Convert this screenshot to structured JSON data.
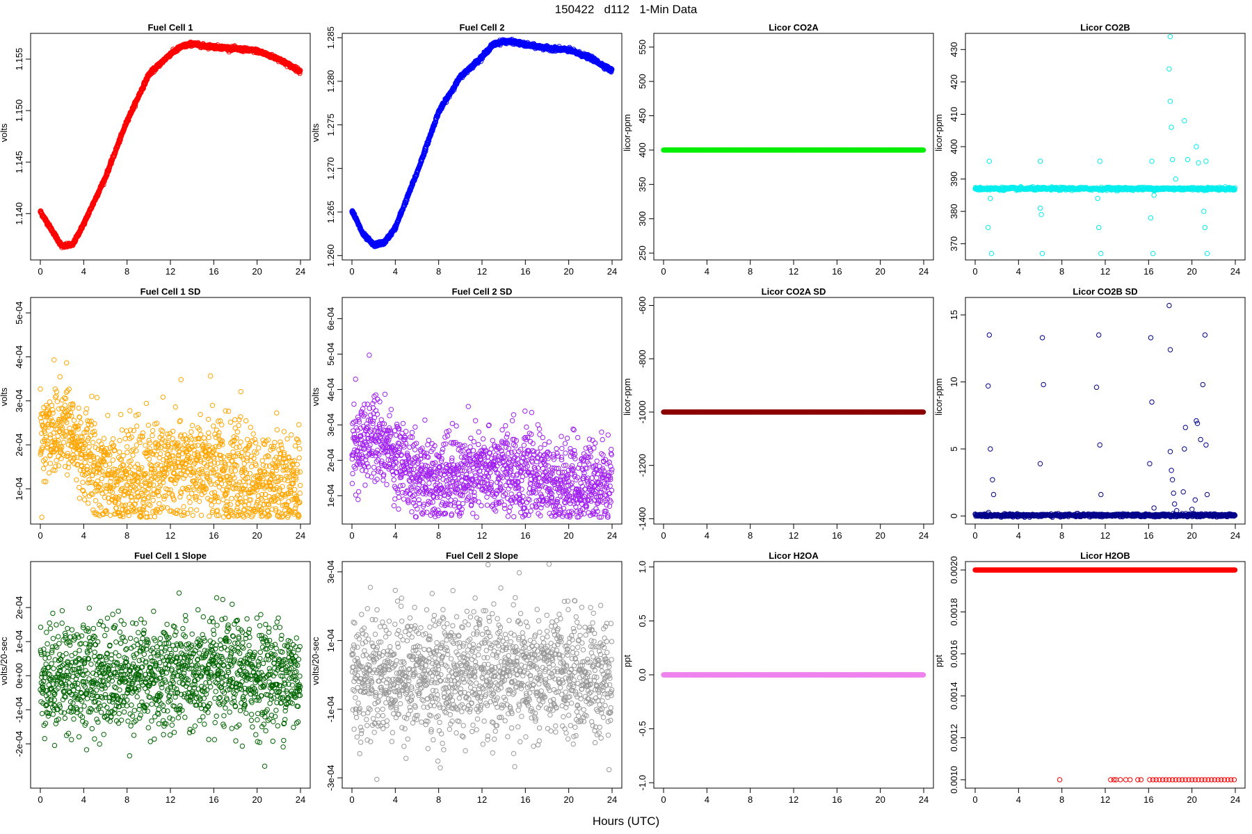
{
  "figure": {
    "title": "150422   d112   1-Min Data",
    "xlabel": "Hours (UTC)"
  },
  "chart_data": [
    {
      "type": "scatter",
      "title": "Fuel Cell 1",
      "ylabel": "volts",
      "color": "#ff0000",
      "xlim": [
        0,
        24
      ],
      "ylim": [
        1.1355,
        1.1575
      ],
      "yticks": [
        1.14,
        1.145,
        1.15,
        1.155
      ],
      "yticklabels": [
        "1.140",
        "1.145",
        "1.150",
        "1.155"
      ],
      "xticks": [
        0,
        4,
        8,
        12,
        16,
        20,
        24
      ],
      "series": [
        {
          "x": [
            0,
            1,
            2,
            3,
            4,
            6,
            8,
            10,
            12,
            13,
            14,
            15,
            16,
            18,
            20,
            22,
            24
          ],
          "y": [
            1.1402,
            1.1385,
            1.1368,
            1.137,
            1.139,
            1.1435,
            1.149,
            1.1535,
            1.1555,
            1.1562,
            1.1565,
            1.1563,
            1.1562,
            1.156,
            1.1558,
            1.155,
            1.1538
          ]
        }
      ],
      "pattern": "smooth"
    },
    {
      "type": "scatter",
      "title": "Fuel Cell 2",
      "ylabel": "volts",
      "color": "#0000ff",
      "xlim": [
        0,
        24
      ],
      "ylim": [
        1.2595,
        1.2855
      ],
      "yticks": [
        1.26,
        1.265,
        1.27,
        1.275,
        1.28,
        1.285
      ],
      "yticklabels": [
        "1.260",
        "1.265",
        "1.270",
        "1.275",
        "1.280",
        "1.285"
      ],
      "xticks": [
        0,
        4,
        8,
        12,
        16,
        20,
        24
      ],
      "series": [
        {
          "x": [
            0,
            1,
            2,
            3,
            4,
            6,
            8,
            10,
            12,
            13,
            14,
            15,
            16,
            18,
            20,
            22,
            24
          ],
          "y": [
            1.2652,
            1.2625,
            1.2612,
            1.2615,
            1.2632,
            1.2695,
            1.2765,
            1.2805,
            1.2828,
            1.2842,
            1.2846,
            1.2845,
            1.2842,
            1.2838,
            1.2836,
            1.2827,
            1.2812
          ]
        }
      ],
      "pattern": "smooth"
    },
    {
      "type": "scatter",
      "title": "Licor CO2A",
      "ylabel": "licor-ppm",
      "color": "#00ee00",
      "xlim": [
        0,
        24
      ],
      "ylim": [
        240,
        570
      ],
      "yticks": [
        250,
        300,
        350,
        400,
        450,
        500,
        550
      ],
      "yticklabels": [
        "250",
        "300",
        "350",
        "400",
        "450",
        "500",
        "550"
      ],
      "xticks": [
        0,
        4,
        8,
        12,
        16,
        20,
        24
      ],
      "series": [
        {
          "x": [
            0,
            24
          ],
          "y": [
            400,
            400
          ]
        }
      ],
      "pattern": "constant"
    },
    {
      "type": "scatter",
      "title": "Licor CO2B",
      "ylabel": "licor-ppm",
      "color": "#00eeee",
      "xlim": [
        0,
        24
      ],
      "ylim": [
        365,
        435
      ],
      "yticks": [
        370,
        380,
        390,
        400,
        410,
        420,
        430
      ],
      "yticklabels": [
        "370",
        "380",
        "390",
        "400",
        "410",
        "420",
        "430"
      ],
      "xticks": [
        0,
        4,
        8,
        12,
        16,
        20,
        24
      ],
      "series": [
        {
          "x": [
            0,
            24
          ],
          "y": [
            387,
            387
          ]
        }
      ],
      "pattern": "baseline-outliers",
      "outliers": [
        [
          1.3,
          395.5
        ],
        [
          1.4,
          384
        ],
        [
          1.5,
          367
        ],
        [
          1.2,
          375
        ],
        [
          6.0,
          395.5
        ],
        [
          6.0,
          381
        ],
        [
          6.2,
          367
        ],
        [
          6.1,
          379
        ],
        [
          11.5,
          395.5
        ],
        [
          11.4,
          375
        ],
        [
          11.6,
          367
        ],
        [
          11.3,
          384
        ],
        [
          16.3,
          395.5
        ],
        [
          16.2,
          378
        ],
        [
          16.4,
          367
        ],
        [
          16.5,
          385
        ],
        [
          17.9,
          424
        ],
        [
          18.0,
          434
        ],
        [
          18.0,
          414
        ],
        [
          18.1,
          406
        ],
        [
          18.2,
          396
        ],
        [
          18.5,
          390
        ],
        [
          19.3,
          408
        ],
        [
          19.6,
          396
        ],
        [
          20.4,
          400
        ],
        [
          20.6,
          395
        ],
        [
          21.3,
          395.5
        ],
        [
          21.2,
          375
        ],
        [
          21.4,
          367
        ],
        [
          21.1,
          380
        ]
      ]
    },
    {
      "type": "scatter",
      "title": "Fuel Cell 1 SD",
      "ylabel": "volts",
      "color": "#ffa500",
      "xlim": [
        0,
        24
      ],
      "ylim": [
        2e-05,
        0.000535
      ],
      "yticks": [
        0.0001,
        0.0002,
        0.0003,
        0.0004,
        0.0005
      ],
      "yticklabels": [
        "1e-04",
        "2e-04",
        "3e-04",
        "4e-04",
        "5e-04"
      ],
      "xticks": [
        0,
        4,
        8,
        12,
        16,
        20,
        24
      ],
      "series": [
        {
          "x": [
            0,
            2,
            4,
            6,
            8,
            10,
            12,
            14,
            16,
            18,
            20,
            22,
            24
          ],
          "y": [
            0.00022,
            0.00025,
            0.00018,
            0.00013,
            0.00012,
            0.00012,
            0.00015,
            0.00015,
            0.00014,
            0.00013,
            0.0001,
            0.00012,
            0.00011
          ]
        }
      ],
      "pattern": "noisy",
      "spread": 6e-05
    },
    {
      "type": "scatter",
      "title": "Fuel Cell 2 SD",
      "ylabel": "volts",
      "color": "#a020f0",
      "xlim": [
        0,
        24
      ],
      "ylim": [
        2e-05,
        0.00066
      ],
      "yticks": [
        0.0001,
        0.0002,
        0.0003,
        0.0004,
        0.0005,
        0.0006
      ],
      "yticklabels": [
        "1e-04",
        "2e-04",
        "3e-04",
        "4e-04",
        "5e-04",
        "6e-04"
      ],
      "xticks": [
        0,
        4,
        8,
        12,
        16,
        20,
        24
      ],
      "series": [
        {
          "x": [
            0,
            2,
            4,
            6,
            8,
            10,
            12,
            14,
            16,
            18,
            20,
            22,
            24
          ],
          "y": [
            0.00023,
            0.00028,
            0.00021,
            0.00015,
            0.00014,
            0.00015,
            0.00016,
            0.00017,
            0.00016,
            0.00014,
            0.00012,
            0.00013,
            0.00013
          ]
        }
      ],
      "pattern": "noisy",
      "spread": 6e-05
    },
    {
      "type": "scatter",
      "title": "Licor CO2A SD",
      "ylabel": "licor-ppm",
      "color": "#8b0000",
      "xlim": [
        0,
        24
      ],
      "ylim": [
        -1420,
        -570
      ],
      "yticks": [
        -1400,
        -1200,
        -1000,
        -800,
        -600
      ],
      "yticklabels": [
        "-1400",
        "-1200",
        "-1000",
        "-800",
        "-600"
      ],
      "xticks": [
        0,
        4,
        8,
        12,
        16,
        20,
        24
      ],
      "series": [
        {
          "x": [
            0,
            24
          ],
          "y": [
            -1000,
            -1000
          ]
        }
      ],
      "pattern": "constant"
    },
    {
      "type": "scatter",
      "title": "Licor CO2B SD",
      "ylabel": "licor-ppm",
      "color": "#00008b",
      "xlim": [
        0,
        24
      ],
      "ylim": [
        -0.6,
        16.3
      ],
      "yticks": [
        0,
        5,
        10,
        15
      ],
      "yticklabels": [
        "0",
        "5",
        "10",
        "15"
      ],
      "xticks": [
        0,
        4,
        8,
        12,
        16,
        20,
        24
      ],
      "series": [
        {
          "x": [
            0,
            24
          ],
          "y": [
            0.05,
            0.05
          ]
        }
      ],
      "pattern": "baseline-outliers",
      "outliers": [
        [
          1.2,
          9.7
        ],
        [
          1.3,
          13.5
        ],
        [
          1.4,
          5.0
        ],
        [
          1.6,
          2.7
        ],
        [
          1.7,
          1.6
        ],
        [
          6.0,
          3.9
        ],
        [
          6.2,
          13.3
        ],
        [
          6.3,
          9.8
        ],
        [
          11.2,
          9.6
        ],
        [
          11.4,
          13.5
        ],
        [
          11.5,
          5.3
        ],
        [
          11.6,
          1.6
        ],
        [
          16.1,
          3.9
        ],
        [
          16.2,
          13.3
        ],
        [
          16.3,
          8.5
        ],
        [
          16.5,
          0.6
        ],
        [
          17.9,
          15.7
        ],
        [
          18.0,
          12.4
        ],
        [
          18.0,
          4.8
        ],
        [
          18.1,
          3.4
        ],
        [
          18.2,
          2.7
        ],
        [
          18.3,
          1.7
        ],
        [
          18.4,
          0.9
        ],
        [
          18.6,
          0.4
        ],
        [
          19.2,
          1.8
        ],
        [
          19.4,
          6.6
        ],
        [
          19.3,
          5.0
        ],
        [
          20.4,
          7.1
        ],
        [
          20.5,
          6.9
        ],
        [
          20.8,
          5.7
        ],
        [
          21.0,
          9.8
        ],
        [
          21.2,
          13.5
        ],
        [
          21.3,
          5.3
        ],
        [
          21.4,
          1.6
        ],
        [
          20.3,
          1.2
        ],
        [
          20.0,
          0.5
        ]
      ]
    },
    {
      "type": "scatter",
      "title": "Fuel Cell 1 Slope",
      "ylabel": "volts/20-sec",
      "color": "#006400",
      "xlim": [
        0,
        24
      ],
      "ylim": [
        -0.00033,
        0.000335
      ],
      "yticks": [
        -0.0002,
        -0.0001,
        0,
        0.0001,
        0.0002
      ],
      "yticklabels": [
        "-2e-04",
        "-1e-04",
        "0e+00",
        "1e-04",
        "2e-04"
      ],
      "xticks": [
        0,
        4,
        8,
        12,
        16,
        20,
        24
      ],
      "series": [
        {
          "x": [
            0,
            24
          ],
          "y": [
            0,
            0
          ]
        }
      ],
      "pattern": "noisy",
      "spread": 8e-05
    },
    {
      "type": "scatter",
      "title": "Fuel Cell 2 Slope",
      "ylabel": "volts/20-sec",
      "color": "#999999",
      "xlim": [
        0,
        24
      ],
      "ylim": [
        -0.00033,
        0.00033
      ],
      "yticks": [
        -0.0003,
        -0.0001,
        0.0001,
        0.0003
      ],
      "yticklabels": [
        "-3e-04",
        "-1e-04",
        "1e-04",
        "3e-04"
      ],
      "xticks": [
        0,
        4,
        8,
        12,
        16,
        20,
        24
      ],
      "series": [
        {
          "x": [
            0,
            24
          ],
          "y": [
            0,
            0
          ]
        }
      ],
      "pattern": "noisy",
      "spread": 9e-05
    },
    {
      "type": "scatter",
      "title": "Licor H2OA",
      "ylabel": "ppt",
      "color": "#ee82ee",
      "xlim": [
        0,
        24
      ],
      "ylim": [
        -1.05,
        1.05
      ],
      "yticks": [
        -1.0,
        -0.5,
        0.0,
        0.5,
        1.0
      ],
      "yticklabels": [
        "-1.0",
        "-0.5",
        "0.0",
        "0.5",
        "1.0"
      ],
      "xticks": [
        0,
        4,
        8,
        12,
        16,
        20,
        24
      ],
      "series": [
        {
          "x": [
            0,
            24
          ],
          "y": [
            0,
            0
          ]
        }
      ],
      "pattern": "constant"
    },
    {
      "type": "scatter",
      "title": "Licor H2OB",
      "ylabel": "ppt",
      "color": "#ff0000",
      "xlim": [
        0,
        24
      ],
      "ylim": [
        0.00096,
        0.00204
      ],
      "yticks": [
        0.001,
        0.0012,
        0.0014,
        0.0016,
        0.0018,
        0.002
      ],
      "yticklabels": [
        "0.0010",
        "0.0012",
        "0.0014",
        "0.0016",
        "0.0018",
        "0.0020"
      ],
      "xticks": [
        0,
        4,
        8,
        12,
        16,
        20,
        24
      ],
      "series": [
        {
          "x": [
            0,
            24
          ],
          "y": [
            0.002,
            0.002
          ]
        }
      ],
      "pattern": "two-level",
      "low": 0.001,
      "low_x": [
        7.8,
        12.5,
        12.8,
        13.0,
        13.4,
        13.9,
        14.3,
        15.0,
        15.3,
        16.1,
        16.4,
        16.7,
        17.0,
        17.3,
        17.6,
        17.9,
        18.2,
        18.5,
        18.8,
        19.1,
        19.4,
        19.7,
        20.0,
        20.3,
        20.6,
        20.9,
        21.2,
        21.5,
        21.8,
        22.1,
        22.4,
        22.7,
        23.0,
        23.3,
        23.6,
        23.9
      ]
    }
  ]
}
